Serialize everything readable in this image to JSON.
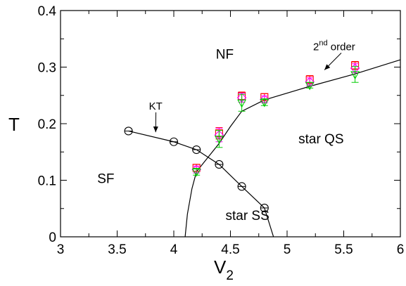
{
  "chart_data": {
    "type": "scatter",
    "xlabel": "V",
    "xlabel_sub": "2",
    "ylabel": "T",
    "xlim": [
      3,
      6
    ],
    "ylim": [
      0,
      0.4
    ],
    "xticks": [
      "3",
      "3.5",
      "4",
      "4.5",
      "5",
      "5.5",
      "6"
    ],
    "yticks": [
      "0",
      "0.1",
      "0.2",
      "0.3",
      "0.4"
    ],
    "grid": false,
    "regions": [
      {
        "label": "NF",
        "x": 4.45,
        "y": 0.315
      },
      {
        "label": "SF",
        "x": 3.4,
        "y": 0.095
      },
      {
        "label": "star SS",
        "x": 4.65,
        "y": 0.03
      },
      {
        "label": "star QS",
        "x": 5.3,
        "y": 0.165
      }
    ],
    "annotations": [
      {
        "text": "KT",
        "text_x": 3.78,
        "text_y": 0.225,
        "arrow_to": [
          3.84,
          0.185
        ]
      },
      {
        "text": "2",
        "sup": "nd",
        "rest": " order",
        "text_x": 5.23,
        "text_y": 0.33,
        "arrow_to": [
          5.33,
          0.295
        ]
      }
    ],
    "kt_line": {
      "x": [
        3.6,
        4.0,
        4.2,
        4.4,
        4.6,
        4.8,
        4.88
      ],
      "y": [
        0.187,
        0.168,
        0.154,
        0.128,
        0.089,
        0.051,
        0.0
      ]
    },
    "second_order_line": {
      "x": [
        4.1,
        4.12,
        4.16,
        4.2,
        4.3,
        4.4,
        4.5,
        4.6,
        4.8,
        5.2,
        5.6,
        6.0
      ],
      "y": [
        0.0,
        0.04,
        0.085,
        0.115,
        0.14,
        0.165,
        0.195,
        0.222,
        0.242,
        0.266,
        0.288,
        0.313
      ]
    },
    "series": [
      {
        "marker": "circle",
        "color": "#000000",
        "x": [
          3.6,
          4.0,
          4.2,
          4.4,
          4.6,
          4.8
        ],
        "y": [
          0.187,
          0.168,
          0.154,
          0.128,
          0.089,
          0.051
        ]
      },
      {
        "marker": "square",
        "color": "#ff0000",
        "x": [
          4.2,
          4.4,
          4.6,
          4.8,
          5.2,
          5.6
        ],
        "y": [
          0.122,
          0.183,
          0.249,
          0.247,
          0.278,
          0.303
        ],
        "err": [
          0.006,
          0.01,
          0.007,
          0.006,
          0.007,
          0.007
        ]
      },
      {
        "marker": "diamond",
        "color": "#ff00ff",
        "x": [
          4.2,
          4.4,
          4.6,
          4.8,
          5.2,
          5.6
        ],
        "y": [
          0.119,
          0.18,
          0.246,
          0.243,
          0.274,
          0.298
        ],
        "err": [
          0.006,
          0.012,
          0.008,
          0.006,
          0.007,
          0.008
        ]
      },
      {
        "marker": "triangle-down",
        "color": "#00cc00",
        "x": [
          4.2,
          4.4,
          4.6,
          4.8,
          5.2,
          5.6
        ],
        "y": [
          0.115,
          0.173,
          0.237,
          0.238,
          0.268,
          0.287
        ],
        "err": [
          0.006,
          0.015,
          0.015,
          0.006,
          0.005,
          0.014
        ]
      }
    ]
  }
}
